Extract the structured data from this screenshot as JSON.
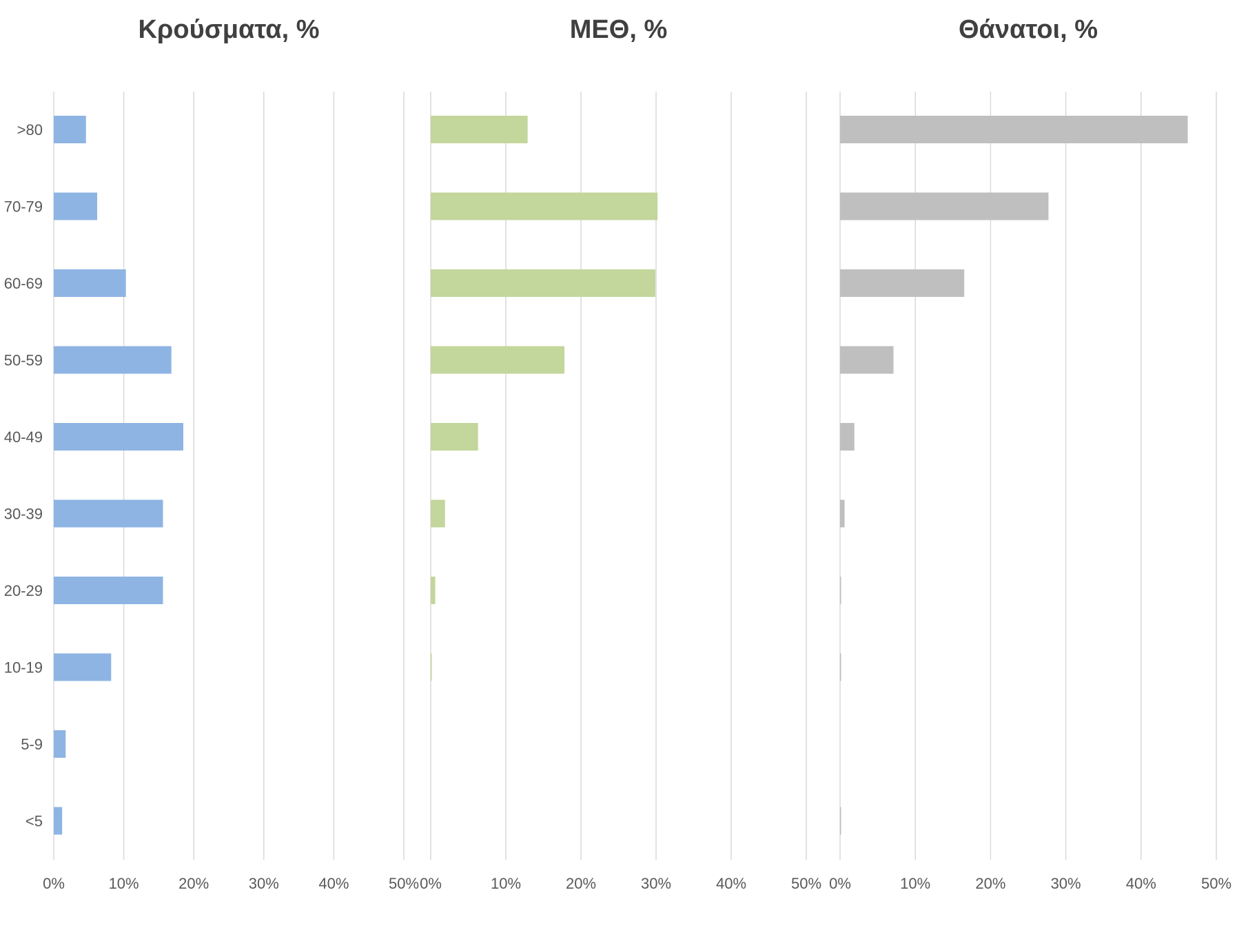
{
  "chart_data": {
    "type": "bar",
    "orientation": "horizontal",
    "categories": [
      ">80",
      "70-79",
      "60-69",
      "50-59",
      "40-49",
      "30-39",
      "20-29",
      "10-19",
      "5-9",
      "<5"
    ],
    "xlim": [
      0,
      50
    ],
    "ticks": [
      "0%",
      "10%",
      "20%",
      "30%",
      "40%",
      "50%"
    ],
    "grid": "vertical",
    "legend": "none",
    "panels": [
      {
        "title": "Κρούσματα, %",
        "color": "#8eb4e3",
        "values": [
          4.6,
          6.2,
          10.3,
          16.8,
          18.5,
          15.6,
          15.6,
          8.2,
          1.7,
          1.2
        ]
      },
      {
        "title": "ΜΕΘ, %",
        "color": "#c3d69b",
        "values": [
          12.9,
          30.2,
          29.9,
          17.8,
          6.3,
          1.9,
          0.6,
          0.1,
          0.0,
          0.0
        ]
      },
      {
        "title": "Θάνατοι, %",
        "color": "#bfbfbf",
        "values": [
          46.2,
          27.7,
          16.5,
          7.1,
          1.9,
          0.6,
          0.1,
          0.05,
          0.0,
          0.05
        ]
      }
    ]
  }
}
